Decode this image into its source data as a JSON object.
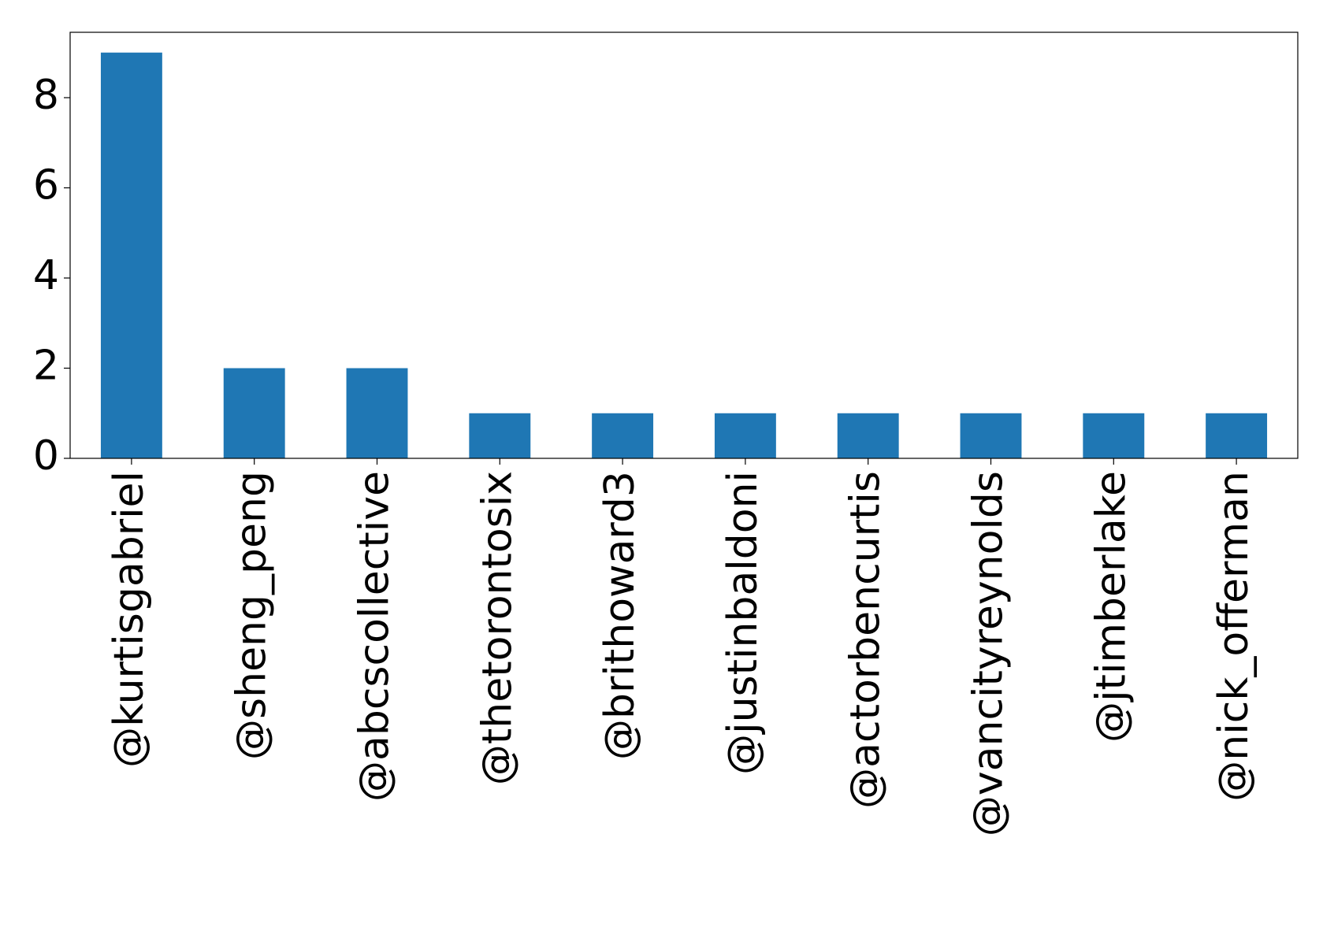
{
  "chart_data": {
    "type": "bar",
    "categories": [
      "@kurtisgabriel",
      "@sheng_peng",
      "@abcscollective",
      "@thetorontosix",
      "@brithoward3",
      "@justinbaldoni",
      "@actorbencurtis",
      "@vancityreynolds",
      "@jtimberlake",
      "@nick_offerman"
    ],
    "values": [
      9,
      2,
      2,
      1,
      1,
      1,
      1,
      1,
      1,
      1
    ],
    "color": "#1f77b4",
    "ylim": [
      0,
      9.45
    ],
    "yticks": [
      0,
      2,
      4,
      6,
      8
    ],
    "grid": false
  }
}
